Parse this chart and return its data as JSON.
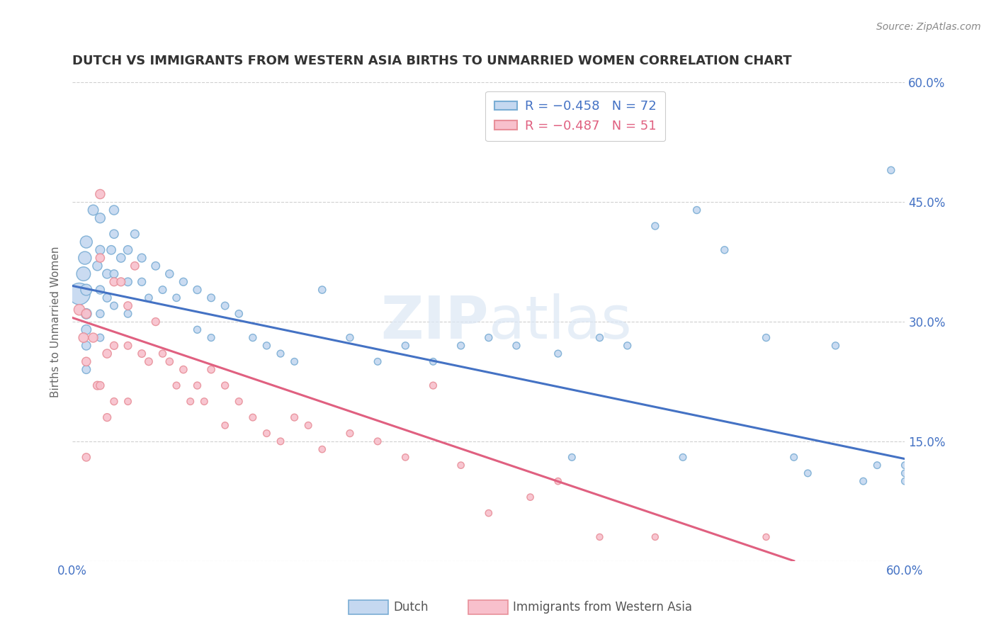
{
  "title": "DUTCH VS IMMIGRANTS FROM WESTERN ASIA BIRTHS TO UNMARRIED WOMEN CORRELATION CHART",
  "source": "Source: ZipAtlas.com",
  "ylabel": "Births to Unmarried Women",
  "xmin": 0.0,
  "xmax": 0.6,
  "ymin": 0.0,
  "ymax": 0.6,
  "yticks": [
    0.0,
    0.15,
    0.3,
    0.45,
    0.6
  ],
  "ytick_labels": [
    "",
    "15.0%",
    "30.0%",
    "45.0%",
    "60.0%"
  ],
  "background_color": "#ffffff",
  "grid_color": "#d0d0d0",
  "watermark_line1": "ZIP",
  "watermark_line2": "atlas",
  "legend_R_dutch": "R = −0.458",
  "legend_N_dutch": "N = 72",
  "legend_R_immigrants": "R = −0.487",
  "legend_N_immigrants": "N = 51",
  "dutch_fill": "#c5d8f0",
  "dutch_edge": "#7aadd4",
  "dutch_line_color": "#4472c4",
  "immigrant_fill": "#f8c0cc",
  "immigrant_edge": "#e8909a",
  "immigrant_line_color": "#e06080",
  "title_color": "#333333",
  "axis_color": "#4472c4",
  "source_color": "#888888",
  "dutch_scatter_x": [
    0.005,
    0.008,
    0.009,
    0.01,
    0.01,
    0.01,
    0.01,
    0.01,
    0.01,
    0.015,
    0.018,
    0.02,
    0.02,
    0.02,
    0.02,
    0.02,
    0.025,
    0.025,
    0.028,
    0.03,
    0.03,
    0.03,
    0.03,
    0.035,
    0.04,
    0.04,
    0.04,
    0.045,
    0.05,
    0.05,
    0.055,
    0.06,
    0.065,
    0.07,
    0.075,
    0.08,
    0.09,
    0.09,
    0.1,
    0.1,
    0.11,
    0.12,
    0.13,
    0.14,
    0.15,
    0.16,
    0.18,
    0.2,
    0.22,
    0.24,
    0.26,
    0.28,
    0.3,
    0.32,
    0.35,
    0.36,
    0.38,
    0.4,
    0.42,
    0.44,
    0.45,
    0.47,
    0.5,
    0.52,
    0.53,
    0.55,
    0.57,
    0.58,
    0.59,
    0.6,
    0.6,
    0.6
  ],
  "dutch_scatter_y": [
    0.335,
    0.36,
    0.38,
    0.4,
    0.34,
    0.31,
    0.29,
    0.27,
    0.24,
    0.44,
    0.37,
    0.43,
    0.39,
    0.34,
    0.31,
    0.28,
    0.36,
    0.33,
    0.39,
    0.44,
    0.41,
    0.36,
    0.32,
    0.38,
    0.39,
    0.35,
    0.31,
    0.41,
    0.38,
    0.35,
    0.33,
    0.37,
    0.34,
    0.36,
    0.33,
    0.35,
    0.34,
    0.29,
    0.33,
    0.28,
    0.32,
    0.31,
    0.28,
    0.27,
    0.26,
    0.25,
    0.34,
    0.28,
    0.25,
    0.27,
    0.25,
    0.27,
    0.28,
    0.27,
    0.26,
    0.13,
    0.28,
    0.27,
    0.42,
    0.13,
    0.44,
    0.39,
    0.28,
    0.13,
    0.11,
    0.27,
    0.1,
    0.12,
    0.49,
    0.12,
    0.1,
    0.11
  ],
  "dutch_scatter_size": [
    480,
    200,
    170,
    150,
    130,
    110,
    95,
    80,
    70,
    110,
    90,
    100,
    85,
    75,
    65,
    58,
    85,
    72,
    80,
    90,
    78,
    68,
    58,
    78,
    78,
    68,
    58,
    72,
    72,
    62,
    55,
    68,
    58,
    65,
    55,
    62,
    62,
    52,
    58,
    50,
    58,
    55,
    52,
    52,
    50,
    48,
    55,
    52,
    48,
    52,
    48,
    52,
    52,
    52,
    50,
    48,
    52,
    52,
    52,
    48,
    52,
    52,
    52,
    48,
    48,
    52,
    48,
    48,
    52,
    48,
    48,
    48
  ],
  "immigrant_scatter_x": [
    0.005,
    0.008,
    0.01,
    0.01,
    0.01,
    0.015,
    0.018,
    0.02,
    0.02,
    0.02,
    0.025,
    0.025,
    0.03,
    0.03,
    0.03,
    0.035,
    0.04,
    0.04,
    0.04,
    0.045,
    0.05,
    0.055,
    0.06,
    0.065,
    0.07,
    0.075,
    0.08,
    0.085,
    0.09,
    0.095,
    0.1,
    0.11,
    0.11,
    0.12,
    0.13,
    0.14,
    0.15,
    0.16,
    0.17,
    0.18,
    0.2,
    0.22,
    0.24,
    0.26,
    0.28,
    0.3,
    0.33,
    0.35,
    0.38,
    0.42,
    0.5
  ],
  "immigrant_scatter_y": [
    0.315,
    0.28,
    0.31,
    0.25,
    0.13,
    0.28,
    0.22,
    0.46,
    0.38,
    0.22,
    0.26,
    0.18,
    0.35,
    0.27,
    0.2,
    0.35,
    0.32,
    0.27,
    0.2,
    0.37,
    0.26,
    0.25,
    0.3,
    0.26,
    0.25,
    0.22,
    0.24,
    0.2,
    0.22,
    0.2,
    0.24,
    0.22,
    0.17,
    0.2,
    0.18,
    0.16,
    0.15,
    0.18,
    0.17,
    0.14,
    0.16,
    0.15,
    0.13,
    0.22,
    0.12,
    0.06,
    0.08,
    0.1,
    0.03,
    0.03,
    0.03
  ],
  "immigrant_scatter_size": [
    120,
    95,
    90,
    78,
    65,
    88,
    72,
    90,
    78,
    65,
    78,
    62,
    72,
    62,
    52,
    72,
    68,
    58,
    48,
    68,
    58,
    58,
    62,
    52,
    55,
    50,
    55,
    48,
    52,
    48,
    55,
    52,
    45,
    50,
    48,
    48,
    48,
    50,
    48,
    45,
    50,
    48,
    45,
    50,
    45,
    45,
    45,
    45,
    42,
    42,
    42
  ],
  "dutch_trendline_x": [
    0.0,
    0.6
  ],
  "dutch_trendline_y": [
    0.345,
    0.128
  ],
  "immigrant_trendline_x": [
    0.0,
    0.52
  ],
  "immigrant_trendline_y": [
    0.305,
    0.0
  ]
}
